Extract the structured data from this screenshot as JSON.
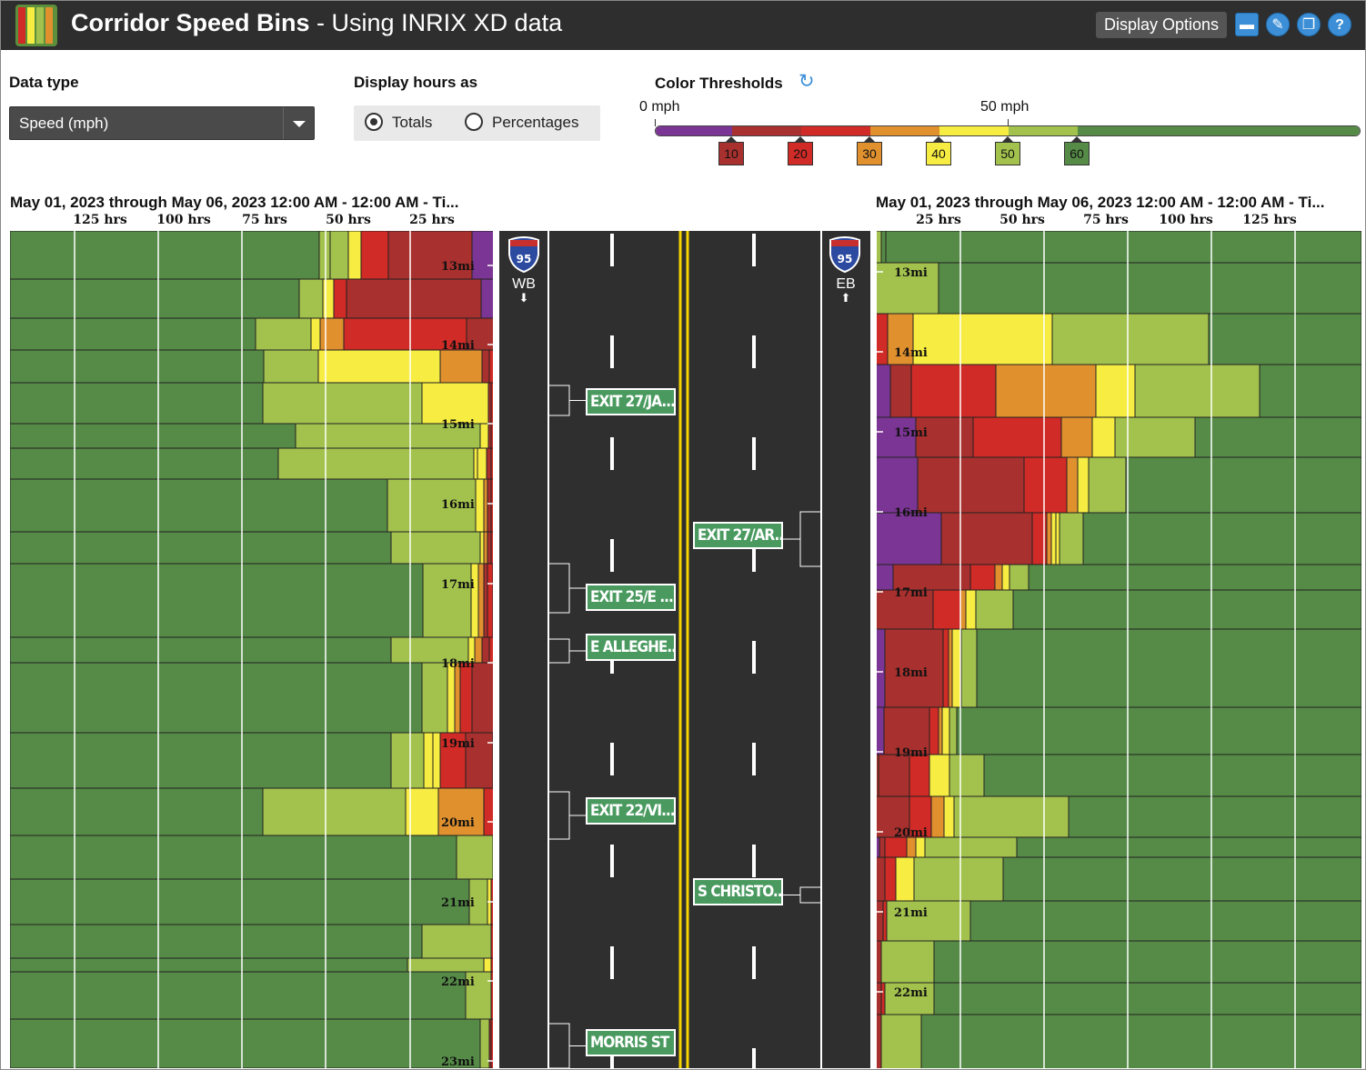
{
  "header": {
    "title_bold": "Corridor Speed Bins",
    "title_rest": " - Using INRIX XD data",
    "display_options": "Display Options",
    "icons": [
      "save-icon",
      "edit-icon",
      "copy-icon",
      "help-icon"
    ]
  },
  "controls": {
    "data_type_label": "Data type",
    "data_type_value": "Speed (mph)",
    "display_hours_label": "Display hours as",
    "radio_totals": "Totals",
    "radio_percentages": "Percentages",
    "selected": "Totals",
    "thresholds_label": "Color Thresholds",
    "threshold_min_label": "0 mph",
    "threshold_mid_label": "50 mph",
    "thresholds": [
      {
        "value": "10",
        "color": "#a8302e"
      },
      {
        "value": "20",
        "color": "#d02b26"
      },
      {
        "value": "30",
        "color": "#e0912e"
      },
      {
        "value": "40",
        "color": "#f7ec41"
      },
      {
        "value": "50",
        "color": "#a3c24d"
      },
      {
        "value": "60",
        "color": "#558b47"
      }
    ]
  },
  "colors": {
    "purple": "#7b3594",
    "darkred": "#a8302e",
    "red": "#d02b26",
    "orange": "#e0912e",
    "yellow": "#f7ec41",
    "lightgreen": "#a3c24d",
    "green": "#558b47"
  },
  "left_chart": {
    "title": "May 01, 2023 through May 06, 2023 12:00 AM - 12:00 AM - Ti...",
    "hours_axis": [
      "125 hrs",
      "100 hrs",
      "75 hrs",
      "50 hrs",
      "25 hrs"
    ],
    "mile_labels": [
      "13mi",
      "14mi",
      "15mi",
      "16mi",
      "17mi",
      "18mi",
      "19mi",
      "20mi",
      "21mi",
      "22mi",
      "23mi"
    ]
  },
  "right_chart": {
    "title": "May 01, 2023 through May 06, 2023 12:00 AM - 12:00 AM - Ti...",
    "hours_axis": [
      "25 hrs",
      "50 hrs",
      "75 hrs",
      "100 hrs",
      "125 hrs"
    ],
    "mile_labels": [
      "13mi",
      "14mi",
      "15mi",
      "16mi",
      "17mi",
      "18mi",
      "19mi",
      "20mi",
      "21mi",
      "22mi"
    ]
  },
  "road": {
    "shield_number": "95",
    "wb_label": "WB",
    "eb_label": "EB",
    "wb_exits": [
      "EXIT 27/JA...",
      "EXIT 25/E ...",
      "E ALLEGHE...",
      "EXIT 22/VI...",
      "MORRIS ST"
    ],
    "eb_exits": [
      "EXIT 27/AR...",
      "S CHRISTO..."
    ]
  }
}
